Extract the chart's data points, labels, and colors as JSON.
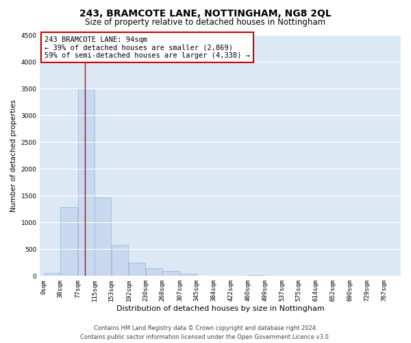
{
  "title": "243, BRAMCOTE LANE, NOTTINGHAM, NG8 2QL",
  "subtitle": "Size of property relative to detached houses in Nottingham",
  "xlabel": "Distribution of detached houses by size in Nottingham",
  "ylabel": "Number of detached properties",
  "bar_left_edges": [
    0,
    38,
    77,
    115,
    153,
    192,
    230,
    268,
    307,
    345,
    384,
    422,
    460,
    499,
    537,
    575,
    614,
    652,
    690,
    729
  ],
  "bar_heights": [
    50,
    1280,
    3500,
    1460,
    580,
    250,
    140,
    90,
    40,
    10,
    5,
    0,
    20,
    0,
    0,
    0,
    0,
    0,
    0,
    10
  ],
  "bin_width": 38,
  "bar_color": "#c8d8ee",
  "bar_edge_color": "#9bbcdb",
  "x_tick_labels": [
    "0sqm",
    "38sqm",
    "77sqm",
    "115sqm",
    "153sqm",
    "192sqm",
    "230sqm",
    "268sqm",
    "307sqm",
    "345sqm",
    "384sqm",
    "422sqm",
    "460sqm",
    "499sqm",
    "537sqm",
    "575sqm",
    "614sqm",
    "652sqm",
    "690sqm",
    "729sqm",
    "767sqm"
  ],
  "ylim": [
    0,
    4500
  ],
  "yticks": [
    0,
    500,
    1000,
    1500,
    2000,
    2500,
    3000,
    3500,
    4000,
    4500
  ],
  "red_line_x": 94,
  "annotation_line1": "243 BRAMCOTE LANE: 94sqm",
  "annotation_line2": "← 39% of detached houses are smaller (2,869)",
  "annotation_line3": "59% of semi-detached houses are larger (4,338) →",
  "annotation_box_color": "#ffffff",
  "annotation_box_edge_color": "#cc0000",
  "footer_line1": "Contains HM Land Registry data © Crown copyright and database right 2024.",
  "footer_line2": "Contains public sector information licensed under the Open Government Licence v3.0.",
  "background_color": "#ffffff",
  "plot_bg_color": "#dde8f5",
  "grid_color": "#ffffff",
  "title_fontsize": 10,
  "subtitle_fontsize": 8.5,
  "xlabel_fontsize": 8,
  "ylabel_fontsize": 7.5,
  "tick_fontsize": 6.5,
  "annotation_fontsize": 7.5,
  "footer_fontsize": 6
}
